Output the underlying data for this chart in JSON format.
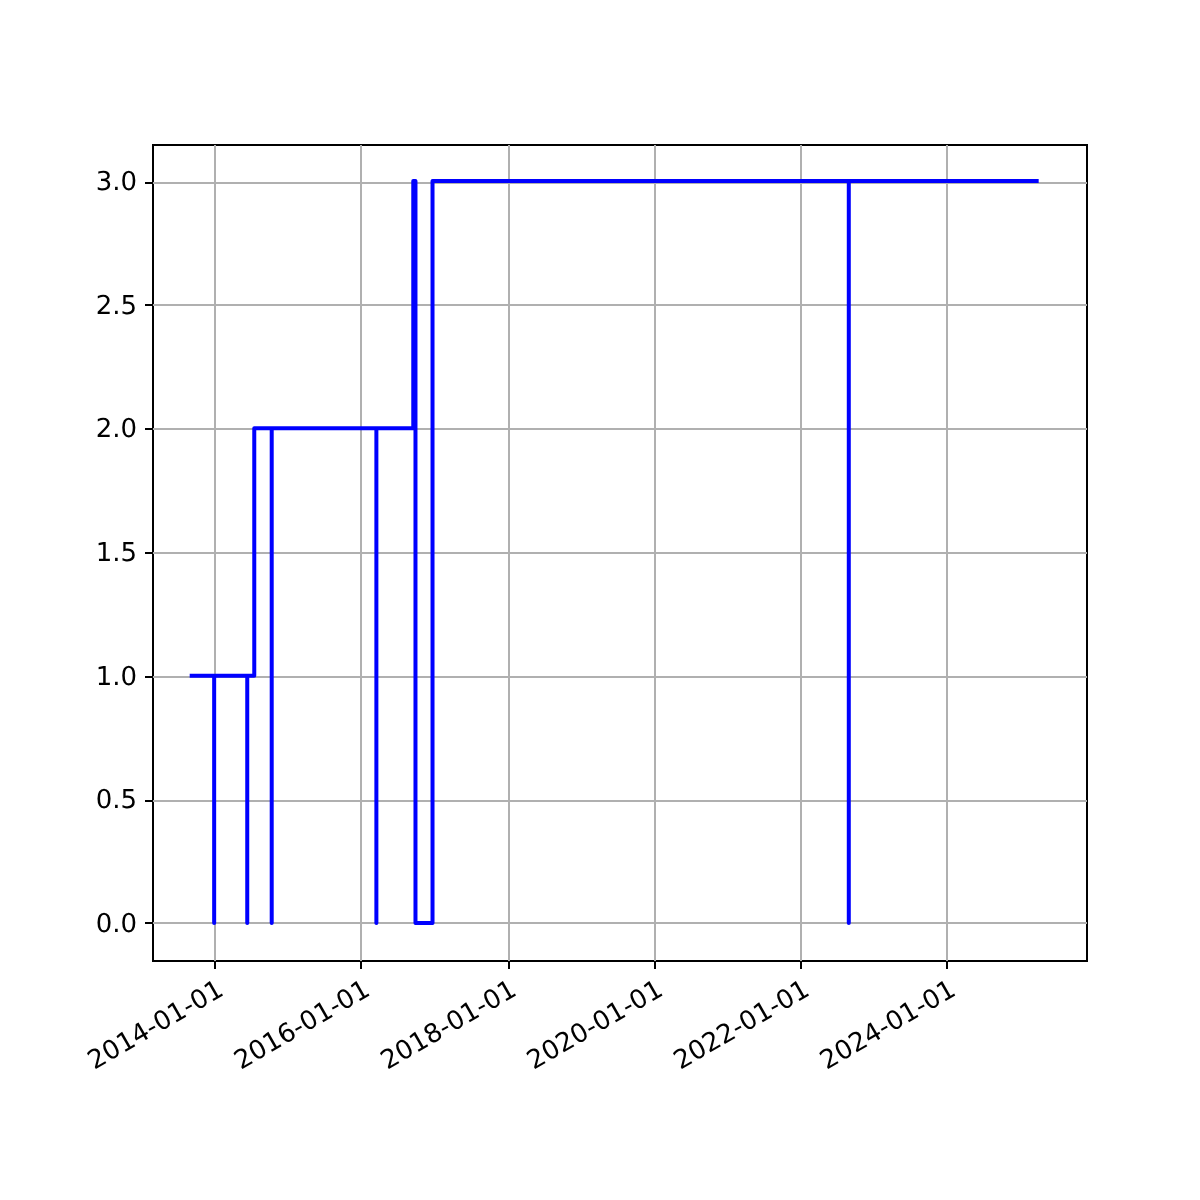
{
  "chart_data": {
    "type": "step",
    "x": [
      "2013-09-01",
      "2014-01-01",
      "2014-01-01",
      "2014-06-15",
      "2014-06-15",
      "2014-07-20",
      "2014-10-15",
      "2014-10-15",
      "2016-03-20",
      "2016-03-20",
      "2016-09-20",
      "2016-10-01",
      "2016-12-25",
      "2022-09-01",
      "2022-09-01",
      "2025-04-05"
    ],
    "series": [
      {
        "color": "#0000ff",
        "values": [
          1,
          0,
          1,
          0,
          1,
          2,
          0,
          2,
          0,
          2,
          3,
          0,
          3,
          0,
          3,
          3
        ]
      }
    ],
    "xlim": [
      "2013-02-25",
      "2025-11-27"
    ],
    "xticks": [
      "2014-01-01",
      "2016-01-01",
      "2018-01-01",
      "2020-01-01",
      "2022-01-01",
      "2024-01-01"
    ],
    "ylim": [
      -0.15,
      3.15
    ],
    "yticks": [
      {
        "value": 0,
        "label": "0.0"
      },
      0.5,
      {
        "value": 1,
        "label": "1.0"
      },
      1.5,
      {
        "value": 2,
        "label": "2.0"
      },
      2.5,
      {
        "value": 3,
        "label": "3.0"
      }
    ],
    "grid": true
  }
}
